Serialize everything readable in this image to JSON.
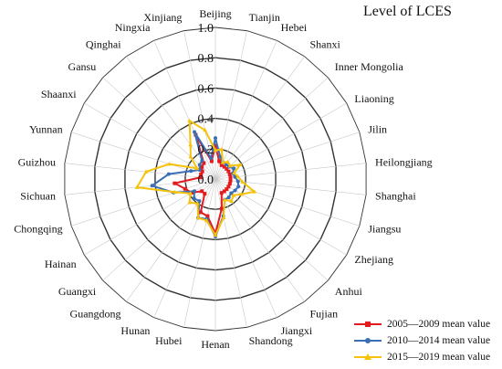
{
  "chart_data": {
    "type": "radar",
    "title": "Level of LCES",
    "rlim": [
      0.0,
      1.0
    ],
    "radial_ticks": [
      "0.0",
      "0.2",
      "0.4",
      "0.6",
      "0.8",
      "1.0"
    ],
    "tick_values": [
      0.0,
      0.2,
      0.4,
      0.6,
      0.8,
      1.0
    ],
    "grid": true,
    "legend_position": "bottom-right",
    "categories": [
      "Beijing",
      "Tianjin",
      "Hebei",
      "Shanxi",
      "Inner Mongolia",
      "Liaoning",
      "Jilin",
      "Heilongjiang",
      "Shanghai",
      "Jiangsu",
      "Zhejiang",
      "Anhui",
      "Fujian",
      "Jiangxi",
      "Shandong",
      "Henan",
      "Hubei",
      "Hunan",
      "Guangdong",
      "Guangxi",
      "Hainan",
      "Chongqing",
      "Sichuan",
      "Guizhou",
      "Yunnan",
      "Shaanxi",
      "Gansu",
      "Qinghai",
      "Ningxia",
      "Xinjiang"
    ],
    "series": [
      {
        "name": "2005—2009 mean value",
        "color": "#e41a1c",
        "marker": "square",
        "values": [
          0.22,
          0.12,
          0.1,
          0.1,
          0.1,
          0.1,
          0.1,
          0.1,
          0.1,
          0.1,
          0.1,
          0.1,
          0.1,
          0.1,
          0.2,
          0.36,
          0.25,
          0.24,
          0.12,
          0.12,
          0.18,
          0.21,
          0.27,
          0.1,
          0.1,
          0.1,
          0.12,
          0.13,
          0.32,
          0.12
        ]
      },
      {
        "name": "2010—2014 mean value",
        "color": "#3a6eb5",
        "marker": "circle",
        "values": [
          0.27,
          0.15,
          0.12,
          0.12,
          0.12,
          0.14,
          0.12,
          0.13,
          0.15,
          0.16,
          0.15,
          0.14,
          0.15,
          0.15,
          0.25,
          0.38,
          0.27,
          0.28,
          0.18,
          0.19,
          0.16,
          0.29,
          0.42,
          0.31,
          0.17,
          0.12,
          0.14,
          0.15,
          0.34,
          0.14
        ]
      },
      {
        "name": "2015—2019 mean value",
        "color": "#f5c20c",
        "marker": "triangle",
        "values": [
          0.19,
          0.2,
          0.12,
          0.14,
          0.13,
          0.19,
          0.13,
          0.15,
          0.18,
          0.27,
          0.2,
          0.16,
          0.18,
          0.15,
          0.26,
          0.37,
          0.28,
          0.28,
          0.2,
          0.23,
          0.19,
          0.28,
          0.52,
          0.46,
          0.32,
          0.14,
          0.22,
          0.28,
          0.42,
          0.33
        ]
      }
    ]
  }
}
